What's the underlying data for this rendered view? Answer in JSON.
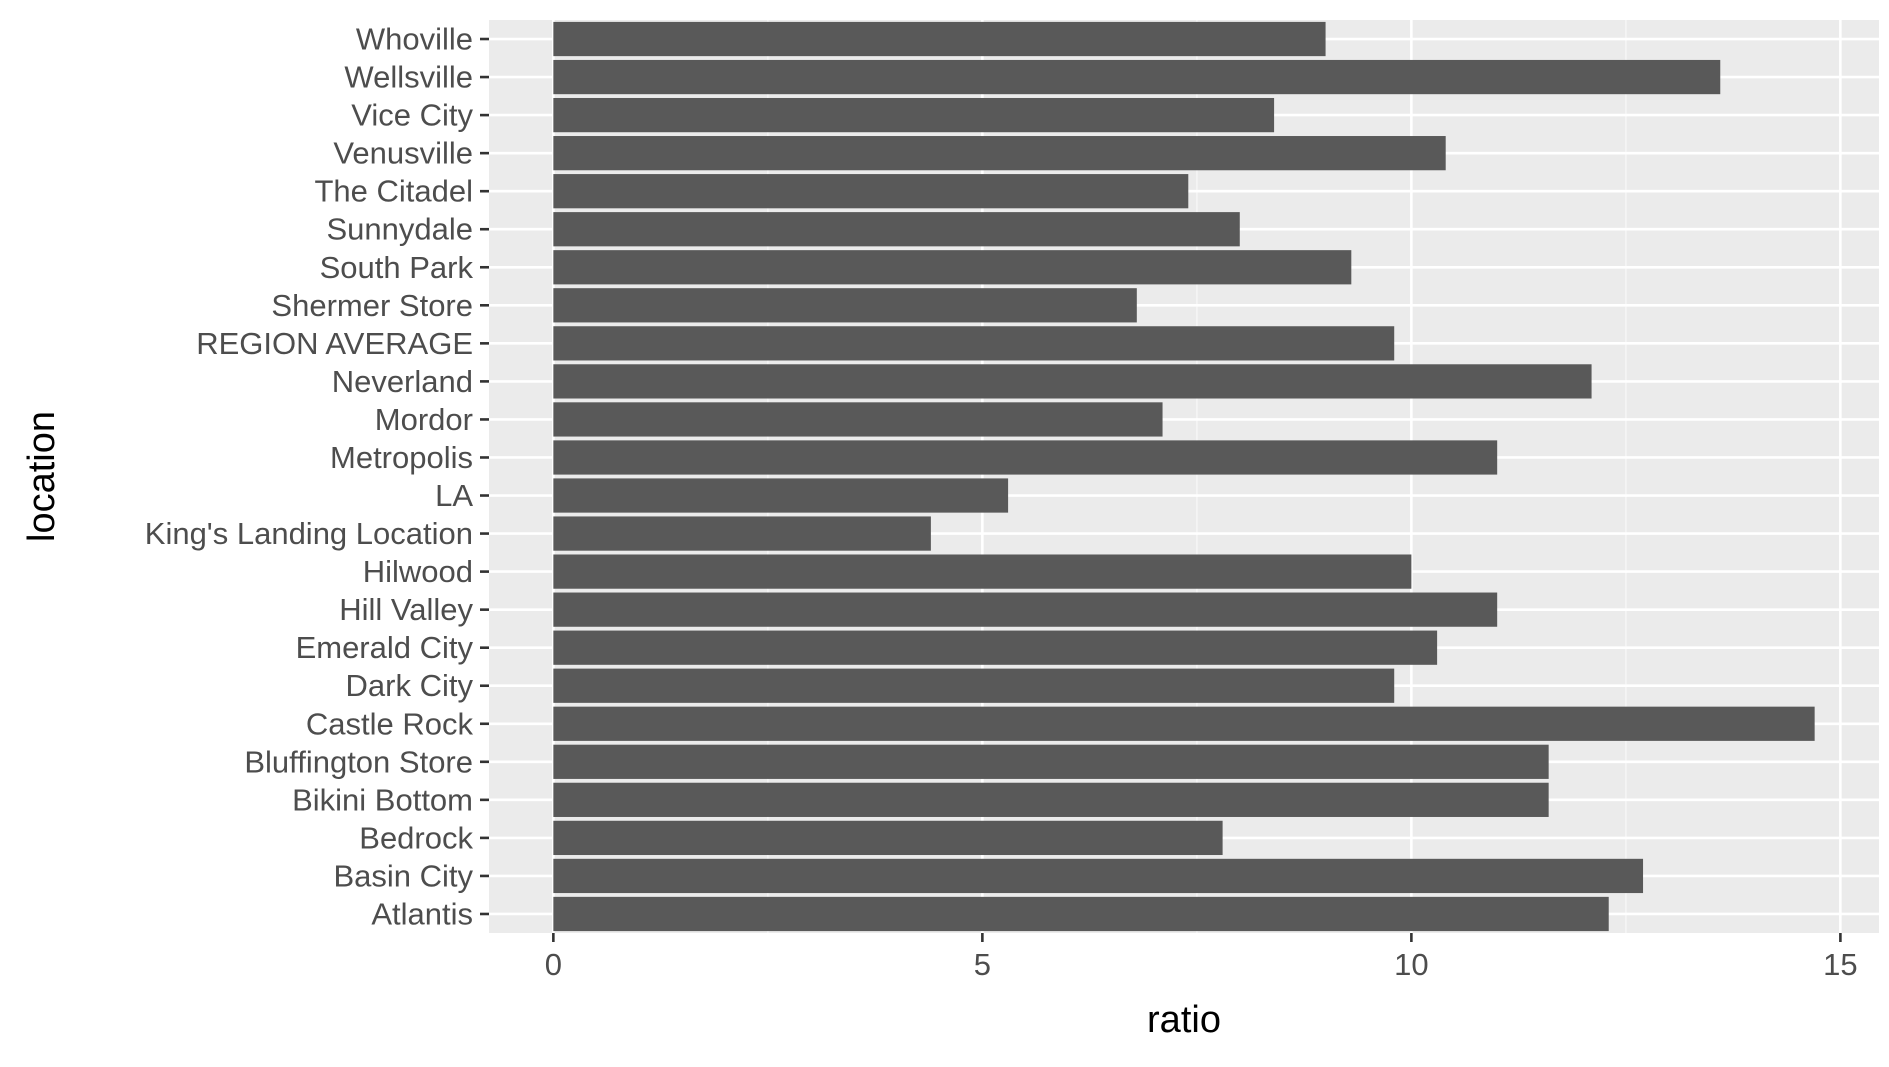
{
  "chart_data": {
    "type": "bar",
    "orientation": "horizontal",
    "title": "",
    "xlabel": "ratio",
    "ylabel": "location",
    "xlim": [
      -0.75,
      15.45
    ],
    "xticks": [
      0,
      5,
      10,
      15
    ],
    "xtick_labels": [
      "0",
      "5",
      "10",
      "15"
    ],
    "grid": true,
    "categories": [
      "Atlantis",
      "Basin City",
      "Bedrock",
      "Bikini Bottom",
      "Bluffington Store",
      "Castle Rock",
      "Dark City",
      "Emerald City",
      "Hill Valley",
      "Hilwood",
      "King's Landing Location",
      "LA",
      "Metropolis",
      "Mordor",
      "Neverland",
      "REGION AVERAGE",
      "Shermer Store",
      "South Park",
      "Sunnydale",
      "The Citadel",
      "Venusville",
      "Vice City",
      "Wellsville",
      "Whoville"
    ],
    "values": [
      12.3,
      12.7,
      7.8,
      11.6,
      11.6,
      14.7,
      9.8,
      10.3,
      11.0,
      10.0,
      4.4,
      5.3,
      11.0,
      7.1,
      12.1,
      9.8,
      6.8,
      9.3,
      8.0,
      7.4,
      10.4,
      8.4,
      13.6,
      9.0
    ],
    "colors": {
      "bar": "#595959",
      "panel": "#ebebeb",
      "grid_major": "#ffffff",
      "grid_minor": "#f5f5f5",
      "tick": "#333333"
    }
  }
}
